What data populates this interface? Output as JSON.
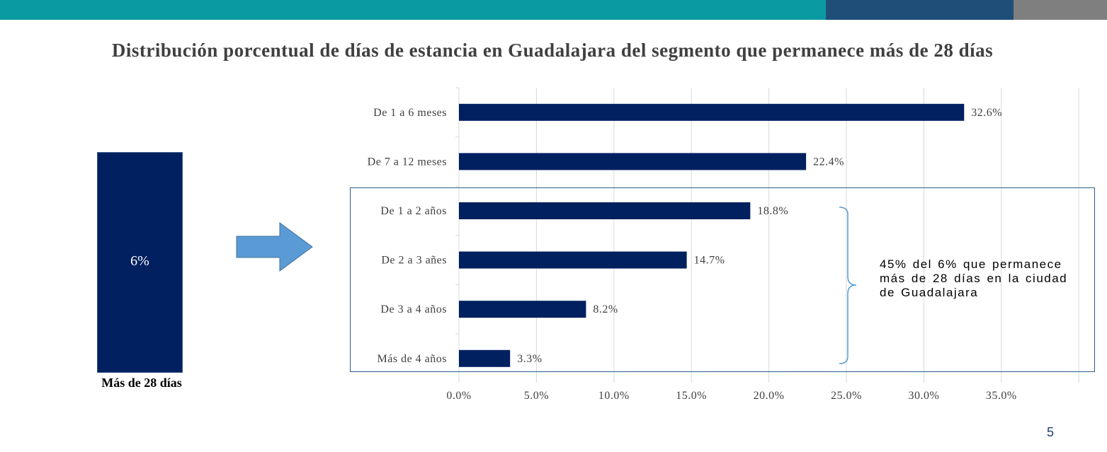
{
  "colors": {
    "topbar_teal": "#0a9aa1",
    "topbar_blue": "#1f4e79",
    "topbar_gray": "#7f7f7f",
    "bar_navy": "#002060",
    "arrow_blue": "#5b9bd5",
    "box_border": "#2f5d8c"
  },
  "left_panel": {
    "bar_value": "6%",
    "bar_label": "Más de 28 días",
    "arrow_icon": "right-arrow-icon"
  },
  "annotation": {
    "text": "45% del 6% que permanece más de 28 días en la ciudad de Guadalajara"
  },
  "page_number": "5",
  "chart_data": {
    "type": "bar",
    "orientation": "horizontal",
    "title": "Distribución porcentual de días de estancia en Guadalajara del segmento que permanece más de 28 días",
    "categories": [
      "De 1 a 6 meses",
      "De 7 a 12 meses",
      "De 1 a 2 años",
      "De 2 a 3 añes",
      "De 3 a 4 años",
      "Más de 4 años"
    ],
    "values": [
      32.6,
      22.4,
      18.8,
      14.7,
      8.2,
      3.3
    ],
    "value_labels": [
      "32.6%",
      "22.4%",
      "18.8%",
      "14.7%",
      "8.2%",
      "3.3%"
    ],
    "xlim": [
      0,
      40
    ],
    "x_ticks": [
      0,
      5,
      10,
      15,
      20,
      25,
      30,
      35
    ],
    "x_tick_labels": [
      "0.0%",
      "5.0%",
      "10.0%",
      "15.0%",
      "20.0%",
      "25.0%",
      "30.0%",
      "35.0%"
    ],
    "grid": true,
    "xlabel": "",
    "ylabel": ""
  }
}
